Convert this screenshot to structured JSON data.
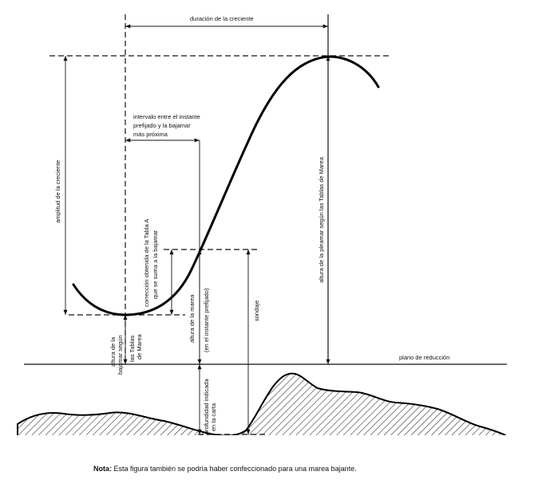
{
  "labels": {
    "duracion": "duración de la creciente",
    "amplitud": "amplitud de la creciente",
    "intervalo_1": "intervalo entre el instante",
    "intervalo_2": "prefijado y la bajamar",
    "intervalo_3": "más próxima",
    "correccion_1": "corrección obtenida de la Tabla A",
    "correccion_2": "que se suma a la bajamar",
    "altura_pleamar": "altura de la pleamar según las Tablas de Marea",
    "altura_bajamar_1": "altura de la",
    "altura_bajamar_2": "bajamar según",
    "altura_bajamar_3": "las Tablas",
    "altura_bajamar_4": "de Marea",
    "altura_marea_1": "altura de la marea",
    "altura_marea_2": "(en el instante prefijado)",
    "sondaje": "sondaje",
    "plano": "plano de reducción",
    "profundidad_1": "profundidad indicada",
    "profundidad_2": "en la carta"
  },
  "note": {
    "label": "Nota:",
    "text": " Esta figura también se podría haber confeccionado para una marea bajante."
  },
  "colors": {
    "ink": "#000000",
    "background": "#ffffff"
  }
}
